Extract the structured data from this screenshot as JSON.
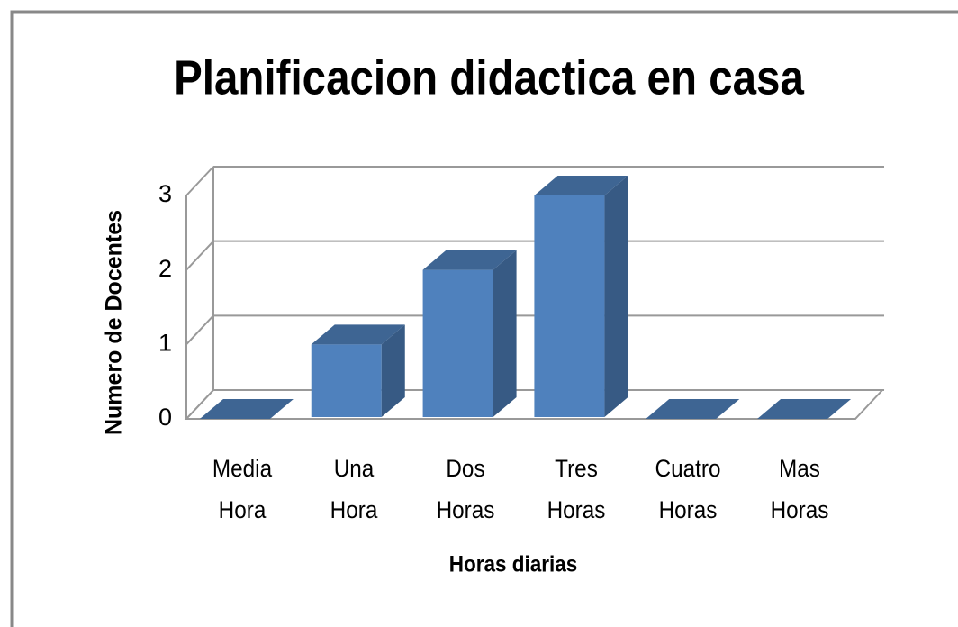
{
  "chart_data": {
    "type": "bar3d",
    "title": "Planificacion didactica en casa",
    "x_label": "Horas diarias",
    "y_label": "Numero de Docentes",
    "categories": [
      "Media Hora",
      "Una Hora",
      "Dos Horas",
      "Tres Horas",
      "Cuatro Horas",
      "Mas Horas"
    ],
    "values": [
      0,
      1,
      2,
      3,
      0,
      0
    ],
    "color": "#4f81bd",
    "ylim": [
      0,
      3
    ],
    "yticks": [
      0,
      1,
      2,
      3
    ],
    "grid": true
  }
}
